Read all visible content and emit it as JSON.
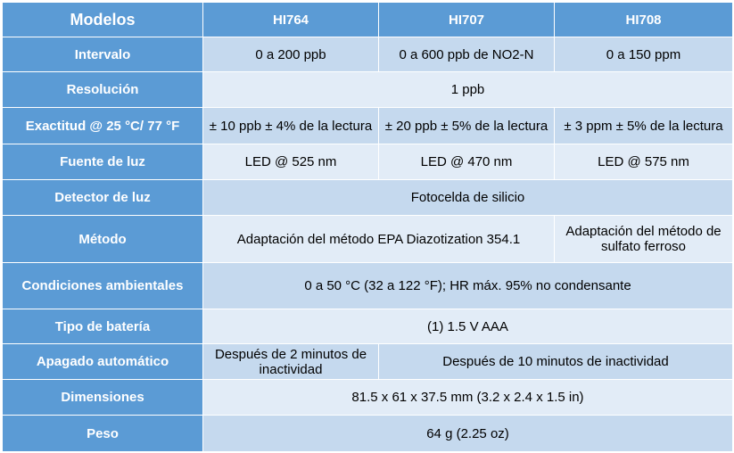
{
  "header": {
    "label": "Modelos",
    "models": [
      "HI764",
      "HI707",
      "HI708"
    ]
  },
  "rows": {
    "intervalo": {
      "label": "Intervalo",
      "hi764": "0 a 200 ppb",
      "hi707": "0 a 600 ppb de NO2-N",
      "hi708": "0 a 150 ppm"
    },
    "resolucion": {
      "label": "Resolución",
      "value": "1 ppb"
    },
    "exactitud": {
      "label": "Exactitud @ 25 °C/ 77 °F",
      "hi764": "± 10 ppb ± 4% de la lectura",
      "hi707": "± 20 ppb ± 5% de la lectura",
      "hi708": "± 3 ppm ± 5% de la lectura"
    },
    "fuente": {
      "label": "Fuente de luz",
      "hi764": "LED @ 525 nm",
      "hi707": "LED @ 470 nm",
      "hi708": "LED @ 575 nm"
    },
    "detector": {
      "label": "Detector de luz",
      "value": "Fotocelda de silicio"
    },
    "metodo": {
      "label": "Método",
      "hi764_hi707": "Adaptación del método EPA Diazotization 354.1",
      "hi708": "Adaptación del método de sulfato ferroso"
    },
    "condiciones": {
      "label": "Condiciones ambientales",
      "value": "0 a 50 °C (32 a 122 °F); HR máx. 95% no condensante"
    },
    "bateria": {
      "label": "Tipo de batería",
      "value": "(1) 1.5 V AAA"
    },
    "apagado": {
      "label": "Apagado automático",
      "hi764": "Después de 2 minutos de inactividad",
      "hi707_hi708": "Después de 10 minutos de inactividad"
    },
    "dimensiones": {
      "label": "Dimensiones",
      "value": "81.5 x 61 x 37.5 mm (3.2 x 2.4 x 1.5 in)"
    },
    "peso": {
      "label": "Peso",
      "value": "64 g (2.25 oz)"
    }
  },
  "colors": {
    "header_blue": "#5b9bd5",
    "row_dark": "#c5d9ee",
    "row_light": "#e2ecf7"
  }
}
